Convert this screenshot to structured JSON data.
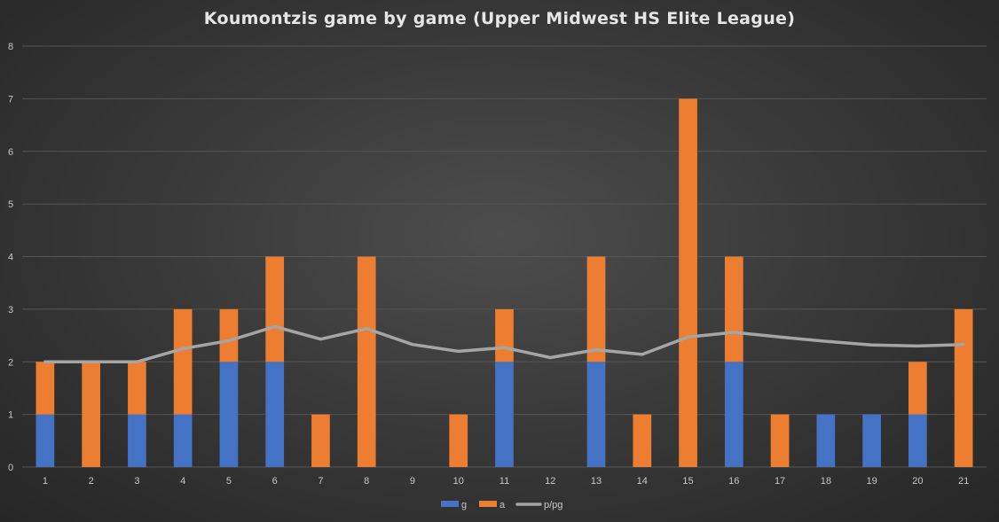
{
  "chart_data": {
    "type": "bar",
    "stacked": true,
    "title": "Koumontzis game by game (Upper Midwest HS Elite League)",
    "categories": [
      "1",
      "2",
      "3",
      "4",
      "5",
      "6",
      "7",
      "8",
      "9",
      "10",
      "11",
      "12",
      "13",
      "14",
      "15",
      "16",
      "17",
      "18",
      "19",
      "20",
      "21"
    ],
    "series": [
      {
        "name": "g",
        "type": "bar",
        "color": "#4472c4",
        "values": [
          1,
          0,
          1,
          1,
          2,
          2,
          0,
          0,
          0,
          0,
          2,
          0,
          2,
          0,
          0,
          2,
          0,
          1,
          1,
          1,
          0
        ]
      },
      {
        "name": "a",
        "type": "bar",
        "color": "#ed7d31",
        "values": [
          1,
          2,
          1,
          2,
          1,
          2,
          1,
          4,
          0,
          1,
          1,
          0,
          2,
          1,
          7,
          2,
          1,
          0,
          0,
          1,
          3
        ]
      },
      {
        "name": "p/pg",
        "type": "line",
        "color": "#a5a5a5",
        "values": [
          2.0,
          2.0,
          2.0,
          2.25,
          2.4,
          2.67,
          2.43,
          2.63,
          2.33,
          2.2,
          2.27,
          2.08,
          2.23,
          2.14,
          2.47,
          2.56,
          2.47,
          2.39,
          2.32,
          2.3,
          2.33
        ]
      }
    ],
    "ylim": [
      0,
      8
    ],
    "yticks": [
      "0",
      "1",
      "2",
      "3",
      "4",
      "5",
      "6",
      "7",
      "8"
    ],
    "grid": true,
    "legend": "bottom"
  }
}
